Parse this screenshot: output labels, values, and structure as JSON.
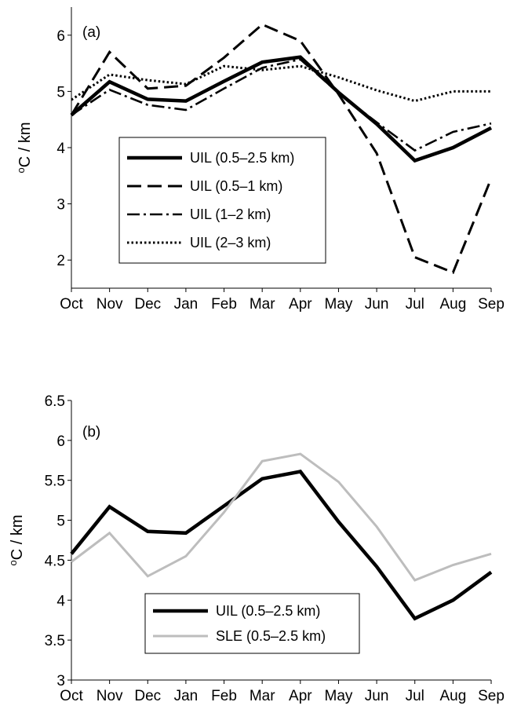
{
  "chart_data": [
    {
      "type": "line",
      "panel_label": "(a)",
      "ylabel": "oC / km",
      "ylabel_base": "C / km",
      "ylabel_sup": "o",
      "categories": [
        "Oct",
        "Nov",
        "Dec",
        "Jan",
        "Feb",
        "Mar",
        "Apr",
        "May",
        "Jun",
        "Jul",
        "Aug",
        "Sep"
      ],
      "ylim": [
        1.5,
        6.5
      ],
      "yticks": [
        2,
        3,
        4,
        5,
        6
      ],
      "legend_position": "center-left",
      "series": [
        {
          "name": "UIL (0.5–2.5 km)",
          "style": "solid-thick",
          "color": "#000000",
          "values": [
            4.58,
            5.17,
            4.86,
            4.83,
            5.18,
            5.52,
            5.61,
            4.98,
            4.42,
            3.77,
            4.0,
            4.35
          ]
        },
        {
          "name": "UIL (0.5–1 km)",
          "style": "dashed",
          "color": "#000000",
          "values": [
            4.58,
            5.7,
            5.05,
            5.1,
            5.6,
            6.19,
            5.9,
            4.95,
            3.9,
            2.05,
            1.78,
            3.45
          ]
        },
        {
          "name": "UIL (1–2 km)",
          "style": "dash-dot",
          "color": "#000000",
          "values": [
            4.58,
            5.03,
            4.76,
            4.67,
            5.05,
            5.42,
            5.57,
            4.97,
            4.45,
            3.95,
            4.28,
            4.43
          ]
        },
        {
          "name": "UIL (2–3 km)",
          "style": "dotted",
          "color": "#000000",
          "values": [
            4.85,
            5.3,
            5.2,
            5.13,
            5.45,
            5.38,
            5.45,
            5.25,
            5.02,
            4.83,
            5.0,
            5.0
          ]
        }
      ]
    },
    {
      "type": "line",
      "panel_label": "(b)",
      "ylabel": "oC / km",
      "ylabel_base": "C / km",
      "ylabel_sup": "o",
      "categories": [
        "Oct",
        "Nov",
        "Dec",
        "Jan",
        "Feb",
        "Mar",
        "Apr",
        "May",
        "Jun",
        "Jul",
        "Aug",
        "Sep"
      ],
      "ylim": [
        3,
        6.5
      ],
      "yticks": [
        "3",
        "3.5",
        "4",
        "4.5",
        "5",
        "5.5",
        "6",
        "6.5"
      ],
      "legend_position": "bottom-center",
      "series": [
        {
          "name": "UIL (0.5–2.5 km)",
          "style": "solid-thick",
          "color": "#000000",
          "values": [
            4.58,
            5.17,
            4.86,
            4.84,
            5.18,
            5.52,
            5.61,
            4.98,
            4.42,
            3.77,
            4.0,
            4.35
          ]
        },
        {
          "name": "SLE (0.5–2.5 km)",
          "style": "solid",
          "color": "#bdbdbd",
          "values": [
            4.48,
            4.84,
            4.3,
            4.55,
            5.1,
            5.74,
            5.83,
            5.48,
            4.92,
            4.25,
            4.44,
            4.58
          ]
        }
      ]
    }
  ]
}
